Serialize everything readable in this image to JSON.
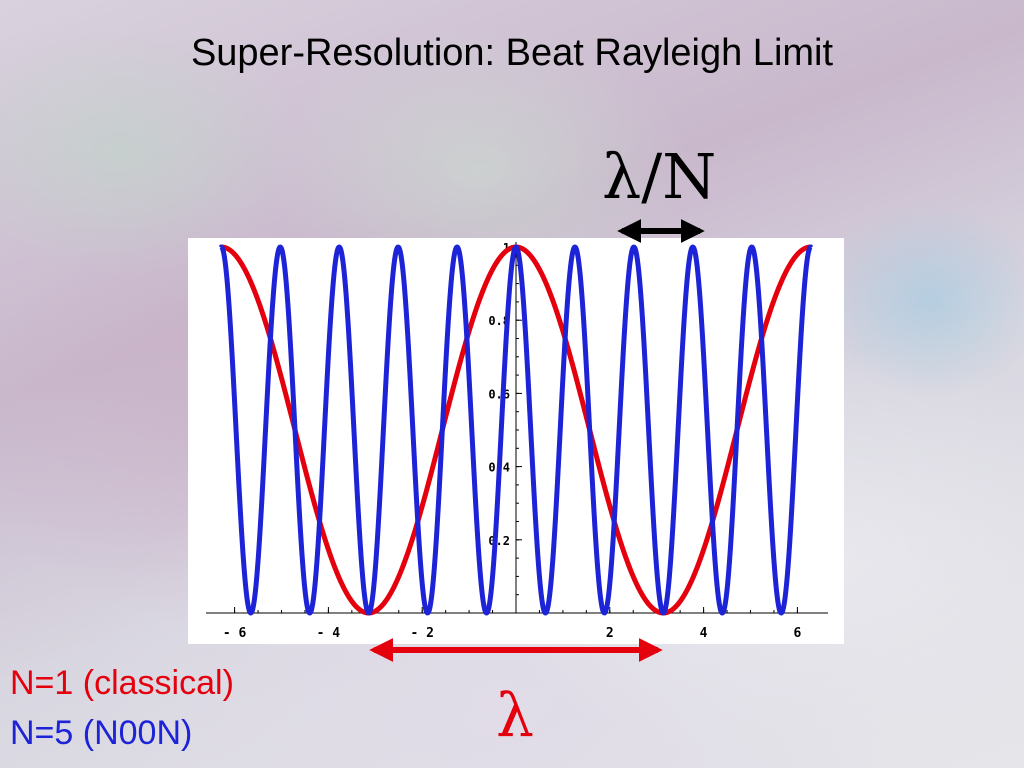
{
  "slide": {
    "title": "Super-Resolution: Beat Rayleigh Limit",
    "annotation_small_period": "λ/N",
    "annotation_large_period": "λ",
    "legend": [
      {
        "label": "N=1 (classical)",
        "color": "#e4000d"
      },
      {
        "label": "N=5 (N00N)",
        "color": "#1d23d6"
      }
    ]
  },
  "chart_data": {
    "type": "line",
    "title": "",
    "xlabel": "",
    "ylabel": "",
    "xlim": [
      -6.3,
      6.3
    ],
    "ylim": [
      0,
      1
    ],
    "x_ticks": [
      -6,
      -4,
      -2,
      2,
      4,
      6
    ],
    "x_tick_labels": [
      "- 6",
      "- 4",
      "- 2",
      "2",
      "4",
      "6"
    ],
    "y_ticks": [
      0.2,
      0.4,
      0.6,
      0.8,
      1
    ],
    "y_tick_labels": [
      "0.2",
      "0.4",
      "0.6",
      "0.8",
      "1"
    ],
    "grid": false,
    "series": [
      {
        "expression": "cos^2(x/2)",
        "N": 1,
        "color": "#e4000d"
      },
      {
        "expression": "cos^2(5x/2)",
        "N": 5,
        "color": "#1d23d6"
      }
    ]
  }
}
